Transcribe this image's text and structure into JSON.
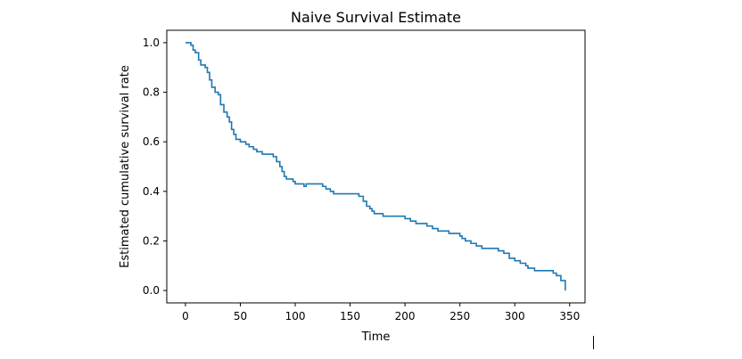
{
  "chart_data": {
    "type": "line",
    "title": "Naive Survival Estimate",
    "xlabel": "Time",
    "ylabel": "Estimated cumulative survival rate",
    "xlim": [
      -17,
      364
    ],
    "ylim": [
      -0.05,
      1.05
    ],
    "xticks": [
      0,
      50,
      100,
      150,
      200,
      250,
      300,
      350
    ],
    "yticks": [
      0.0,
      0.2,
      0.4,
      0.6,
      0.8,
      1.0
    ],
    "xtick_labels": [
      "0",
      "50",
      "100",
      "150",
      "200",
      "250",
      "300",
      "350"
    ],
    "ytick_labels": [
      "0.0",
      "0.2",
      "0.4",
      "0.6",
      "0.8",
      "1.0"
    ],
    "grid": false,
    "legend": "none",
    "line_color": "#1f77b4",
    "series": [
      {
        "step": "post",
        "x": [
          0,
          5,
          7,
          9,
          12,
          14,
          18,
          20,
          22,
          24,
          27,
          30,
          32,
          35,
          38,
          40,
          42,
          44,
          46,
          50,
          55,
          58,
          62,
          65,
          70,
          80,
          83,
          86,
          88,
          90,
          92,
          98,
          100,
          108,
          110,
          125,
          128,
          132,
          135,
          155,
          158,
          162,
          165,
          168,
          170,
          172,
          175,
          180,
          200,
          205,
          210,
          212,
          220,
          225,
          230,
          232,
          240,
          250,
          252,
          255,
          260,
          265,
          270,
          285,
          290,
          295,
          300,
          305,
          310,
          312,
          318,
          335,
          338,
          342,
          346
        ],
        "y": [
          1.0,
          0.99,
          0.97,
          0.96,
          0.93,
          0.91,
          0.9,
          0.88,
          0.85,
          0.82,
          0.8,
          0.79,
          0.75,
          0.72,
          0.7,
          0.68,
          0.65,
          0.63,
          0.61,
          0.6,
          0.59,
          0.58,
          0.57,
          0.56,
          0.55,
          0.54,
          0.52,
          0.5,
          0.48,
          0.46,
          0.45,
          0.44,
          0.43,
          0.42,
          0.43,
          0.42,
          0.41,
          0.4,
          0.39,
          0.39,
          0.38,
          0.36,
          0.34,
          0.33,
          0.32,
          0.31,
          0.31,
          0.3,
          0.29,
          0.28,
          0.27,
          0.27,
          0.26,
          0.25,
          0.24,
          0.24,
          0.23,
          0.22,
          0.21,
          0.2,
          0.19,
          0.18,
          0.17,
          0.16,
          0.15,
          0.13,
          0.12,
          0.11,
          0.1,
          0.09,
          0.08,
          0.07,
          0.06,
          0.04,
          0.0
        ]
      }
    ]
  }
}
